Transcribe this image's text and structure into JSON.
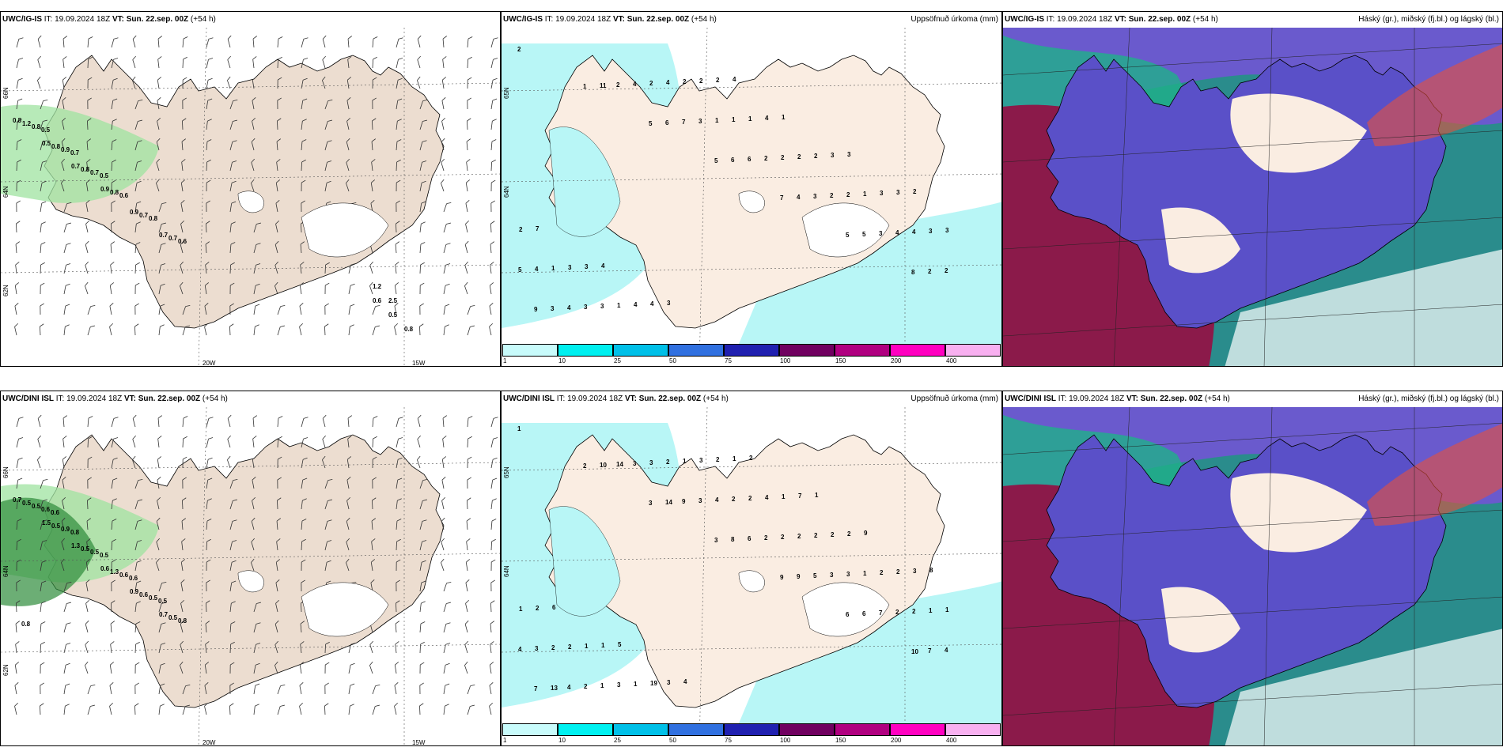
{
  "panels": [
    {
      "id": "p1",
      "model": "UWC/IG-IS",
      "it_label": "IT:",
      "it": "19.09.2024 18Z",
      "vt_label": "VT:",
      "vt": "Sun. 22.sep. 00Z",
      "lead": "(+54 h)",
      "right": "",
      "axis": {
        "lat_top": "66N",
        "lat_mid": "64N",
        "lat_bot": "62N",
        "lon_a": "20W",
        "lon_b": "15W"
      },
      "values": [
        "0.8",
        "0.5",
        "0.7",
        "0.9",
        "0.9",
        "0.7",
        "1.2",
        "0.8",
        "0.8",
        "0.8",
        "0.7",
        "0.7",
        "0.8",
        "0.9",
        "0.7",
        "0.6",
        "0.8",
        "0.6",
        "0.5",
        "0.7",
        "0.5",
        "0.6",
        "0.5",
        "0.8",
        "1.2",
        "2.5"
      ]
    },
    {
      "id": "p2",
      "model": "UWC/IG-IS",
      "it_label": "IT:",
      "it": "19.09.2024 18Z",
      "vt_label": "VT:",
      "vt": "Sun. 22.sep. 00Z",
      "lead": "(+54 h)",
      "right": "Uppsöfnuð úrkoma (mm)",
      "axis": {
        "lat_top": "65N",
        "lat_mid": "64N"
      },
      "values": [
        "2",
        "1",
        "5",
        "5",
        "7",
        "5",
        "8",
        "9",
        "11",
        "6",
        "6",
        "4",
        "5",
        "2",
        "3",
        "2",
        "7",
        "6",
        "3",
        "3",
        "2",
        "4",
        "4",
        "3",
        "2",
        "2",
        "4",
        "5",
        "3",
        "2",
        "1",
        "2",
        "2",
        "4",
        "4",
        "3",
        "4",
        "1",
        "2",
        "1",
        "3",
        "1",
        "1",
        "2",
        "1",
        "2",
        "3",
        "3",
        "3",
        "4",
        "2",
        "4",
        "3",
        "3",
        "2",
        "3",
        "4",
        "2",
        "1",
        "3",
        "2",
        "7",
        "4",
        "3",
        "4"
      ]
    },
    {
      "id": "p3",
      "model": "UWC/IG-IS",
      "it_label": "IT:",
      "it": "19.09.2024 18Z",
      "vt_label": "VT:",
      "vt": "Sun. 22.sep. 00Z",
      "lead": "(+54 h)",
      "right": "Háský (gr.), miðský (fj.bl.) og lágský (bl.)"
    },
    {
      "id": "p4",
      "model": "UWC/DINI ISL",
      "it_label": "IT:",
      "it": "19.09.2024 18Z",
      "vt_label": "VT:",
      "vt": "Sun. 22.sep. 00Z",
      "lead": "(+54 h)",
      "right": "",
      "axis": {
        "lat_top": "66N",
        "lat_mid": "64N",
        "lat_bot": "62N",
        "lon_a": "20W",
        "lon_b": "15W"
      },
      "values": [
        "0.7",
        "1.5",
        "1.3",
        "0.6",
        "0.9",
        "0.7",
        "0.5",
        "0.5",
        "0.5",
        "1.3",
        "0.6",
        "0.5",
        "0.5",
        "0.9",
        "0.5",
        "0.6",
        "0.5",
        "0.8",
        "0.6",
        "0.8",
        "0.5",
        "0.6",
        "0.5",
        "0.8",
        "0.6"
      ]
    },
    {
      "id": "p5",
      "model": "UWC/DINI ISL",
      "it_label": "IT:",
      "it": "19.09.2024 18Z",
      "vt_label": "VT:",
      "vt": "Sun. 22.sep. 00Z",
      "lead": "(+54 h)",
      "right": "Uppsöfnuð úrkoma (mm)",
      "axis": {
        "lat_top": "65N",
        "lat_mid": "64N"
      },
      "values": [
        "1",
        "2",
        "3",
        "3",
        "9",
        "6",
        "10",
        "7",
        "10",
        "14",
        "8",
        "9",
        "6",
        "7",
        "13",
        "14",
        "9",
        "6",
        "5",
        "7",
        "4",
        "4",
        "3",
        "3",
        "2",
        "3",
        "2",
        "4",
        "2",
        "3",
        "4",
        "2",
        "3",
        "2",
        "3",
        "1",
        "2",
        "2",
        "2",
        "1",
        "1",
        "2",
        "3",
        "1",
        "2",
        "2",
        "2",
        "1",
        "2",
        "1",
        "3",
        "4",
        "2",
        "2",
        "1",
        "1",
        "19",
        "2",
        "1",
        "2",
        "3",
        "2",
        "1",
        "3",
        "1",
        "7",
        "9",
        "8",
        "6",
        "5",
        "4",
        "2",
        "1"
      ]
    },
    {
      "id": "p6",
      "model": "UWC/DINI ISL",
      "it_label": "IT:",
      "it": "19.09.2024 18Z",
      "vt_label": "VT:",
      "vt": "Sun. 22.sep. 00Z",
      "lead": "(+54 h)",
      "right": "Háský (gr.), miðský (fj.bl.) og lágský (bl.)"
    }
  ],
  "colorbar": {
    "ticks": [
      "1",
      "10",
      "25",
      "50",
      "75",
      "100",
      "150",
      "200",
      "400"
    ],
    "colors": [
      "#c8fbfb",
      "#00f0f0",
      "#00c0e8",
      "#3070e0",
      "#2020b0",
      "#700060",
      "#b00080",
      "#ff00c0",
      "#f8b0f0"
    ]
  }
}
